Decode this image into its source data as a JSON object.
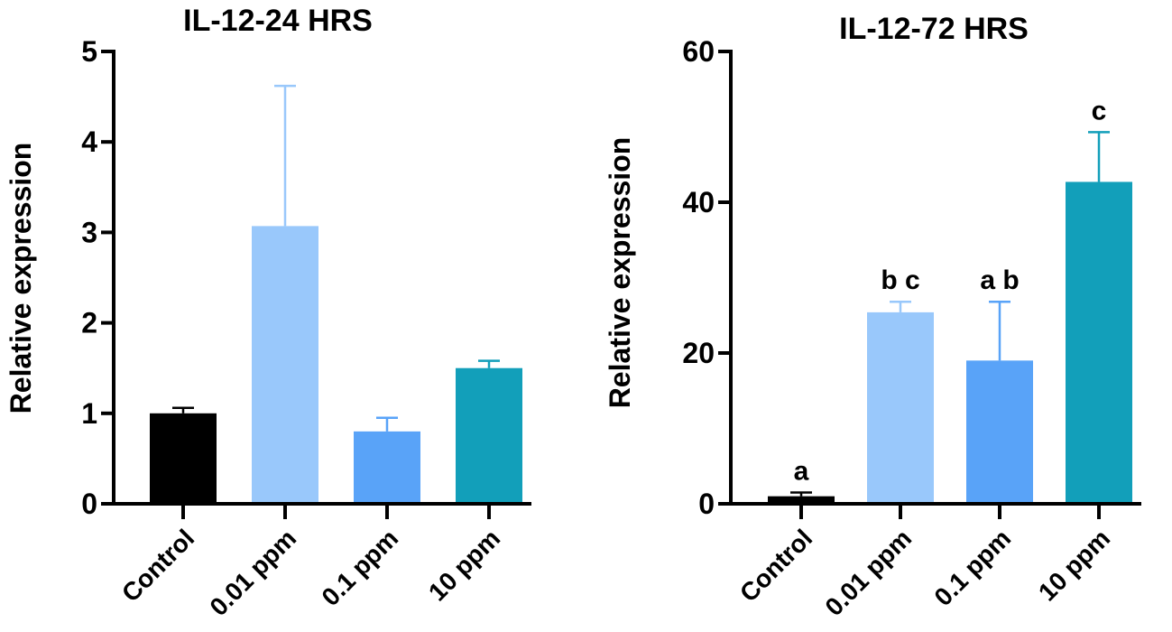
{
  "chart_data": [
    {
      "type": "bar",
      "title": "IL-12-24 HRS",
      "xlabel": "",
      "ylabel": "Relative expression",
      "ylim": [
        0,
        5
      ],
      "yticks": [
        0,
        1,
        2,
        3,
        4,
        5
      ],
      "categories": [
        "Control",
        "0.01 ppm",
        "0.1 ppm",
        "10 ppm"
      ],
      "values": [
        1.0,
        3.07,
        0.8,
        1.5
      ],
      "error_upper": [
        1.06,
        4.62,
        0.95,
        1.58
      ],
      "colors": [
        "#000000",
        "#99c8fb",
        "#59a3f8",
        "#129fba"
      ],
      "annotations": []
    },
    {
      "type": "bar",
      "title": "IL-12-72 HRS",
      "xlabel": "",
      "ylabel": "Relative expression",
      "ylim": [
        0,
        60
      ],
      "yticks": [
        0,
        20,
        40,
        60
      ],
      "categories": [
        "Control",
        "0.01 ppm",
        "0.1 ppm",
        "10 ppm"
      ],
      "values": [
        1.0,
        25.4,
        19.0,
        42.7
      ],
      "error_upper": [
        1.5,
        26.8,
        26.8,
        49.3
      ],
      "colors": [
        "#000000",
        "#99c8fb",
        "#59a3f8",
        "#129fba"
      ],
      "annotations": [
        "a",
        "b c",
        "a b",
        "c"
      ]
    }
  ]
}
